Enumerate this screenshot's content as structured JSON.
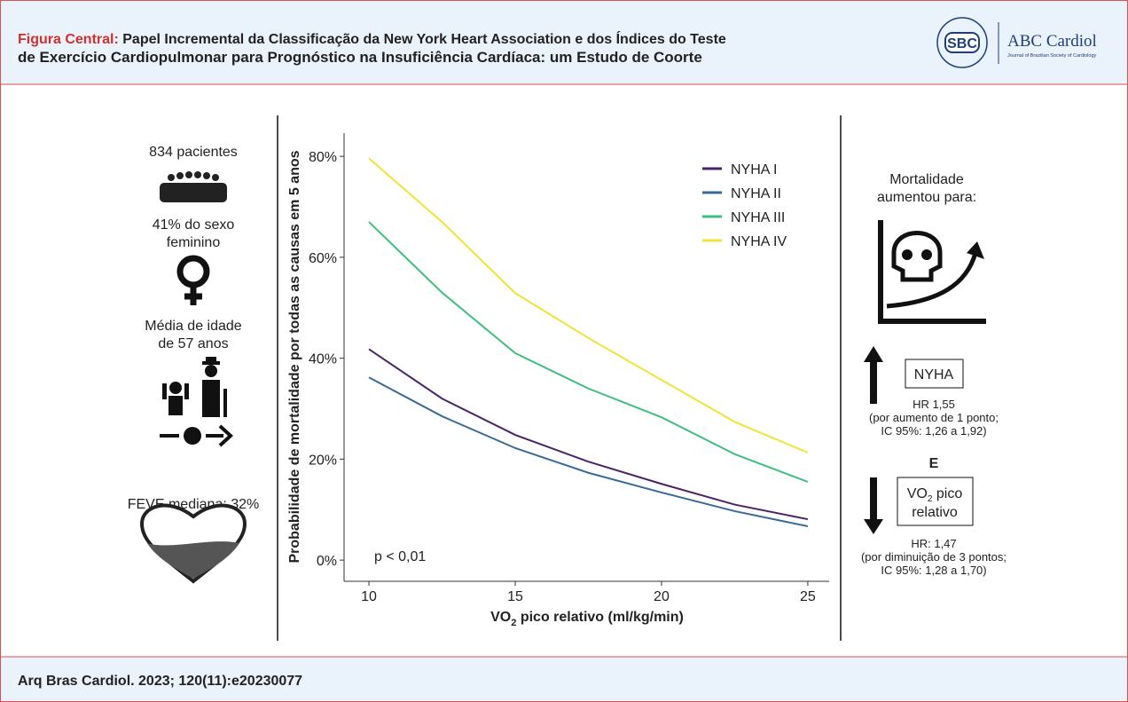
{
  "header": {
    "label": "Figura Central:",
    "title_line1": "Papel Incremental da Classificação da New York Heart Association e dos Índices do Teste",
    "title_line2": "de Exercício Cardiopulmonar para Prognóstico na Insuficiência Cardíaca: um Estudo de Coorte",
    "logo": "SBC",
    "journal": "ABC Cardiol",
    "journal_sub": "Journal of Brazilian Society of Cardiology"
  },
  "left": {
    "patients": "834 pacientes",
    "female_1": "41% do sexo",
    "female_2": "feminino",
    "age_1": "Média de idade",
    "age_2": "de 57 anos",
    "lvef": "FEVE mediana: 32%"
  },
  "chart_data": {
    "type": "line",
    "y_label": "Probabilidade de mortalidade por todas as causas em 5 anos",
    "x_label": [
      "VO",
      "2",
      " pico relativo (ml/kg/min)"
    ],
    "annotation": "p < 0,01",
    "x": [
      10,
      12.5,
      15,
      17.5,
      20,
      22.5,
      25
    ],
    "series": [
      {
        "name": "NYHA I",
        "color": "#4b2466",
        "values": [
          41.8,
          32,
          24.8,
          19.5,
          15.1,
          11,
          8.1
        ]
      },
      {
        "name": "NYHA II",
        "color": "#3a6b96",
        "values": [
          36.2,
          28.5,
          22.2,
          17.3,
          13.4,
          9.7,
          6.7
        ]
      },
      {
        "name": "NYHA III",
        "color": "#3fbf7f",
        "values": [
          67,
          53,
          41,
          34,
          28.3,
          21,
          15.5
        ]
      },
      {
        "name": "NYHA IV",
        "color": "#f2e33a",
        "values": [
          79.6,
          67,
          52.9,
          44,
          35.7,
          27.4,
          21.3
        ]
      }
    ],
    "xlim": [
      9.15,
      25.73
    ],
    "xticks": [
      10,
      15,
      20,
      25
    ],
    "ylim": [
      -4.2,
      84.6
    ],
    "yticks": [
      {
        "value": 0,
        "label": "0%"
      },
      {
        "value": 20,
        "label": "20%"
      },
      {
        "value": 40,
        "label": "40%"
      },
      {
        "value": 60,
        "label": "60%"
      },
      {
        "value": 80,
        "label": "80%"
      }
    ],
    "legend": "top-right"
  },
  "right": {
    "mort_1": "Mortalidade",
    "mort_2": "aumentou para:",
    "nyha_box": "NYHA",
    "hr1_1": "HR 1,55",
    "hr1_2": "(por aumento de 1 ponto;",
    "hr1_3": "IC 95%: 1,26 a 1,92)",
    "and": "E",
    "vo2_box": [
      "VO",
      "2",
      " pico",
      "relativo"
    ],
    "hr2_1": "HR: 1,47",
    "hr2_2": "(por diminuição de 3 pontos;",
    "hr2_3": "IC 95%: 1,28 a  1,70)"
  },
  "footer": {
    "citation": "Arq Bras Cardiol. 2023; 120(11):e20230077"
  }
}
